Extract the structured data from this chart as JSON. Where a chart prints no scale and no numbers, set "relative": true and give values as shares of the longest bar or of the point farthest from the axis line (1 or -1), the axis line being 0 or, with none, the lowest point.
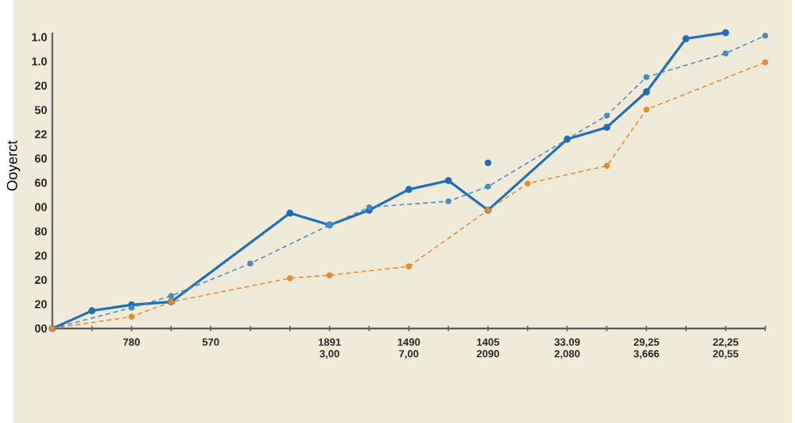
{
  "chart_data": {
    "type": "line",
    "ylabel": "Ooyerct",
    "relative": true,
    "marker": "circle",
    "categories": [
      null,
      null,
      "780",
      null,
      "570",
      null,
      null,
      "1891 3,00",
      null,
      "1490 7,00",
      null,
      "1405 2090",
      null,
      "33.09 2,080",
      null,
      "29,25 3,666",
      null,
      "22,25 20,55",
      null
    ],
    "annotations": [
      "1.0",
      "1.0",
      "20",
      "50",
      "22",
      "60",
      "60",
      "00",
      "80",
      "20",
      "20",
      "20",
      "00"
    ],
    "series": [
      {
        "color": "#1f6fb8",
        "line_style": "solid",
        "values": [
          0,
          0.06,
          0.08,
          0.09,
          null,
          null,
          0.39,
          0.35,
          0.4,
          0.47,
          0.5,
          0.4,
          null,
          0.64,
          0.68,
          0.8,
          0.98,
          1,
          null
        ]
      },
      {
        "color": "#4a8ac0",
        "line_style": "dashed",
        "values": [
          0,
          null,
          0.07,
          0.11,
          null,
          0.22,
          null,
          0.35,
          0.41,
          null,
          0.43,
          0.48,
          null,
          null,
          0.72,
          0.85,
          null,
          0.93,
          0.99
        ]
      },
      {
        "color": "#e8892b",
        "line_style": "dashed",
        "values": [
          0,
          null,
          0.04,
          0.09,
          null,
          null,
          0.17,
          0.18,
          null,
          0.21,
          null,
          0.4,
          0.49,
          null,
          0.55,
          0.74,
          null,
          null,
          0.9
        ]
      },
      {
        "type": "scatter",
        "color": "#1f6fb8",
        "values": [
          null,
          null,
          null,
          null,
          null,
          null,
          null,
          null,
          null,
          null,
          null,
          0.56,
          null,
          null,
          null,
          null,
          null,
          null,
          null
        ]
      }
    ]
  }
}
